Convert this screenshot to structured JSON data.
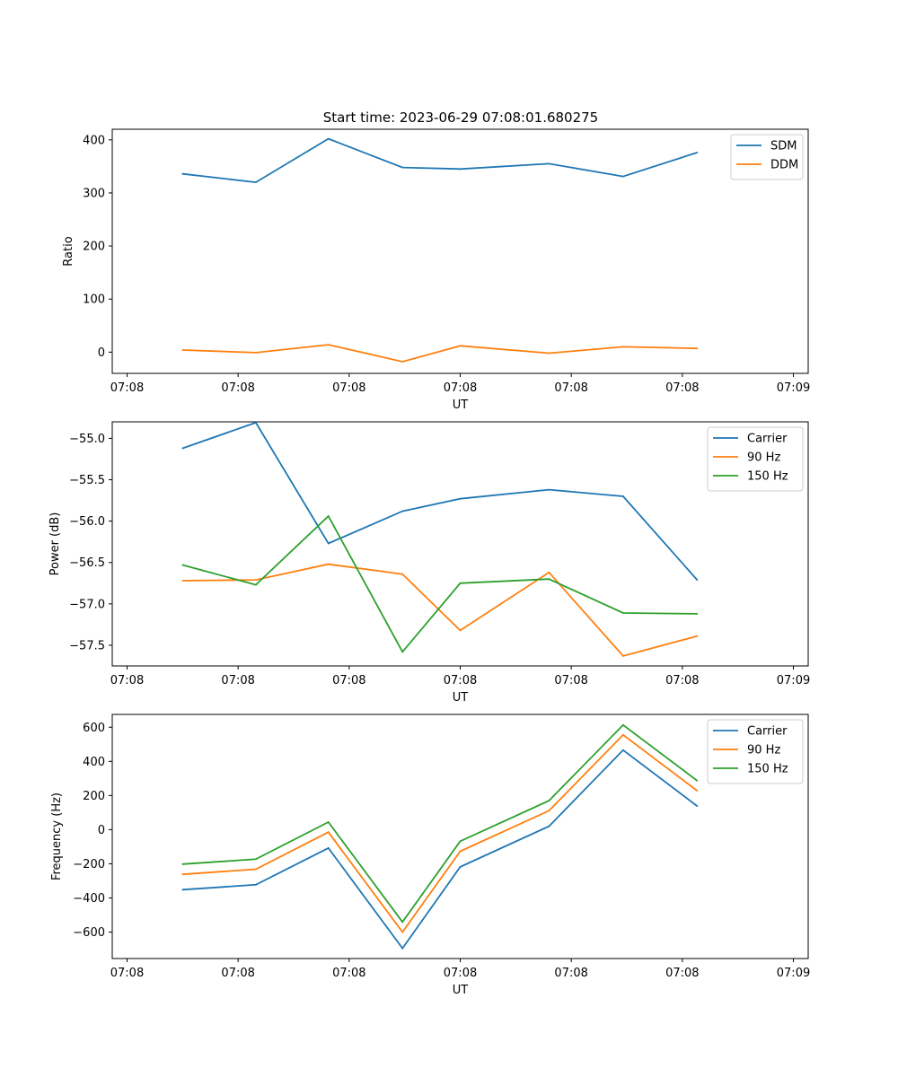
{
  "figure_title": "Start time: 2023-06-29 07:08:01.680275",
  "colors": {
    "blue": "#1f77b4",
    "orange": "#ff7f0e",
    "green": "#2ca02c"
  },
  "chart_data": [
    {
      "type": "line",
      "title": "Start time: 2023-06-29 07:08:01.680275",
      "xlabel": "UT",
      "ylabel": "Ratio",
      "x_tick_labels": [
        "07:08",
        "07:08",
        "07:08",
        "07:08",
        "07:08",
        "07:08",
        "07:09"
      ],
      "x_tick_positions": [
        0,
        1.5,
        3,
        4.5,
        6,
        7.5,
        9
      ],
      "xlim": [
        -0.2,
        9.2
      ],
      "x": [
        0.75,
        1.74,
        2.72,
        3.72,
        4.5,
        5.7,
        6.7,
        7.7
      ],
      "ylim": [
        -40,
        420
      ],
      "yticks": [
        0,
        100,
        200,
        300,
        400
      ],
      "yticklabels": [
        "0",
        "100",
        "200",
        "300",
        "400"
      ],
      "legend_position": "upper right",
      "series": [
        {
          "name": "SDM",
          "color": "#1f77b4",
          "values": [
            336,
            320,
            402,
            348,
            345,
            355,
            331,
            376
          ]
        },
        {
          "name": "DDM",
          "color": "#ff7f0e",
          "values": [
            4,
            -1,
            14,
            -18,
            12,
            -2,
            10,
            7
          ]
        }
      ]
    },
    {
      "type": "line",
      "xlabel": "UT",
      "ylabel": "Power (dB)",
      "x_tick_labels": [
        "07:08",
        "07:08",
        "07:08",
        "07:08",
        "07:08",
        "07:08",
        "07:09"
      ],
      "x_tick_positions": [
        0,
        1.5,
        3,
        4.5,
        6,
        7.5,
        9
      ],
      "xlim": [
        -0.2,
        9.2
      ],
      "x": [
        0.75,
        1.74,
        2.72,
        3.72,
        4.5,
        5.7,
        6.7,
        7.7
      ],
      "ylim": [
        -57.75,
        -54.8
      ],
      "yticks": [
        -57.5,
        -57.0,
        -56.5,
        -56.0,
        -55.5,
        -55.0
      ],
      "yticklabels": [
        "−57.5",
        "−57.0",
        "−56.5",
        "−56.0",
        "−55.5",
        "−55.0"
      ],
      "legend_position": "upper right",
      "series": [
        {
          "name": "Carrier",
          "color": "#1f77b4",
          "values": [
            -55.12,
            -54.81,
            -56.27,
            -55.88,
            -55.73,
            -55.62,
            -55.7,
            -56.71
          ]
        },
        {
          "name": "90 Hz",
          "color": "#ff7f0e",
          "values": [
            -56.72,
            -56.71,
            -56.52,
            -56.64,
            -57.32,
            -56.62,
            -57.63,
            -57.39
          ]
        },
        {
          "name": "150 Hz",
          "color": "#2ca02c",
          "values": [
            -56.53,
            -56.77,
            -55.94,
            -57.58,
            -56.75,
            -56.7,
            -57.11,
            -57.12
          ]
        }
      ]
    },
    {
      "type": "line",
      "xlabel": "UT",
      "ylabel": "Frequency (Hz)",
      "x_tick_labels": [
        "07:08",
        "07:08",
        "07:08",
        "07:08",
        "07:08",
        "07:08",
        "07:09"
      ],
      "x_tick_positions": [
        0,
        1.5,
        3,
        4.5,
        6,
        7.5,
        9
      ],
      "xlim": [
        -0.2,
        9.2
      ],
      "x": [
        0.75,
        1.74,
        2.72,
        3.72,
        4.5,
        5.7,
        6.7,
        7.7
      ],
      "ylim": [
        -755,
        675
      ],
      "yticks": [
        -600,
        -400,
        -200,
        0,
        200,
        400,
        600
      ],
      "yticklabels": [
        "−600",
        "−400",
        "−200",
        "0",
        "200",
        "400",
        "600"
      ],
      "legend_position": "upper right",
      "series": [
        {
          "name": "Carrier",
          "color": "#1f77b4",
          "values": [
            -352,
            -323,
            -108,
            -695,
            -218,
            20,
            466,
            138
          ]
        },
        {
          "name": "90 Hz",
          "color": "#ff7f0e",
          "values": [
            -262,
            -232,
            -15,
            -600,
            -127,
            111,
            555,
            228
          ]
        },
        {
          "name": "150 Hz",
          "color": "#2ca02c",
          "values": [
            -202,
            -173,
            44,
            -541,
            -68,
            170,
            613,
            287
          ]
        }
      ]
    }
  ]
}
